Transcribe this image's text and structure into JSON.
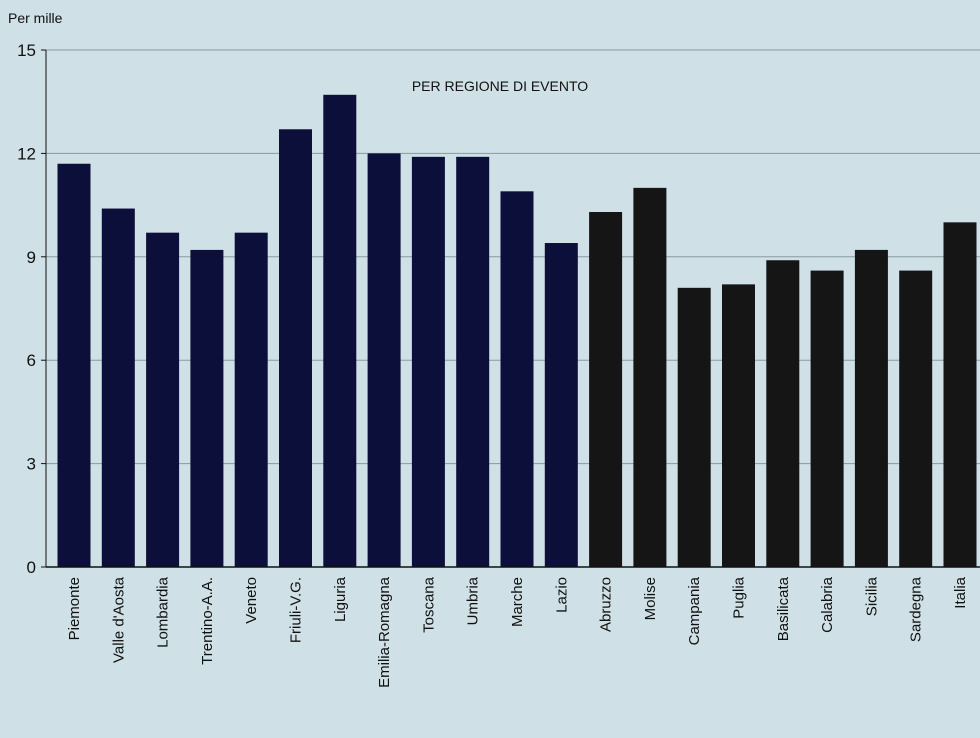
{
  "chart_data": {
    "type": "bar",
    "title": "PER REGIONE DI EVENTO",
    "ylabel": "Per mille",
    "ylim": [
      0,
      15
    ],
    "yticks": [
      0,
      3,
      6,
      9,
      12,
      15
    ],
    "grid": true,
    "categories": [
      "Piemonte",
      "Valle d'Aosta",
      "Lombardia",
      "Trentino-A.A.",
      "Veneto",
      "Friuli-V.G.",
      "Liguria",
      "Emilia-Romagna",
      "Toscana",
      "Umbria",
      "Marche",
      "Lazio",
      "Abruzzo",
      "Molise",
      "Campania",
      "Puglia",
      "Basilicata",
      "Calabria",
      "Sicilia",
      "Sardegna",
      "Italia"
    ],
    "values": [
      11.7,
      10.4,
      9.7,
      9.2,
      9.7,
      12.7,
      13.7,
      12.0,
      11.9,
      11.9,
      10.9,
      9.4,
      10.3,
      11.0,
      8.1,
      8.2,
      8.9,
      8.6,
      9.2,
      8.6,
      10.0
    ],
    "colors": {
      "north_center": "#0b0f3a",
      "south_islands": "#151515",
      "plot_background": "#cfe0e6",
      "gridline": "#8a9aa0"
    },
    "color_groups": [
      "north_center",
      "north_center",
      "north_center",
      "north_center",
      "north_center",
      "north_center",
      "north_center",
      "north_center",
      "north_center",
      "north_center",
      "north_center",
      "north_center",
      "south_islands",
      "south_islands",
      "south_islands",
      "south_islands",
      "south_islands",
      "south_islands",
      "south_islands",
      "south_islands",
      "south_islands"
    ]
  }
}
